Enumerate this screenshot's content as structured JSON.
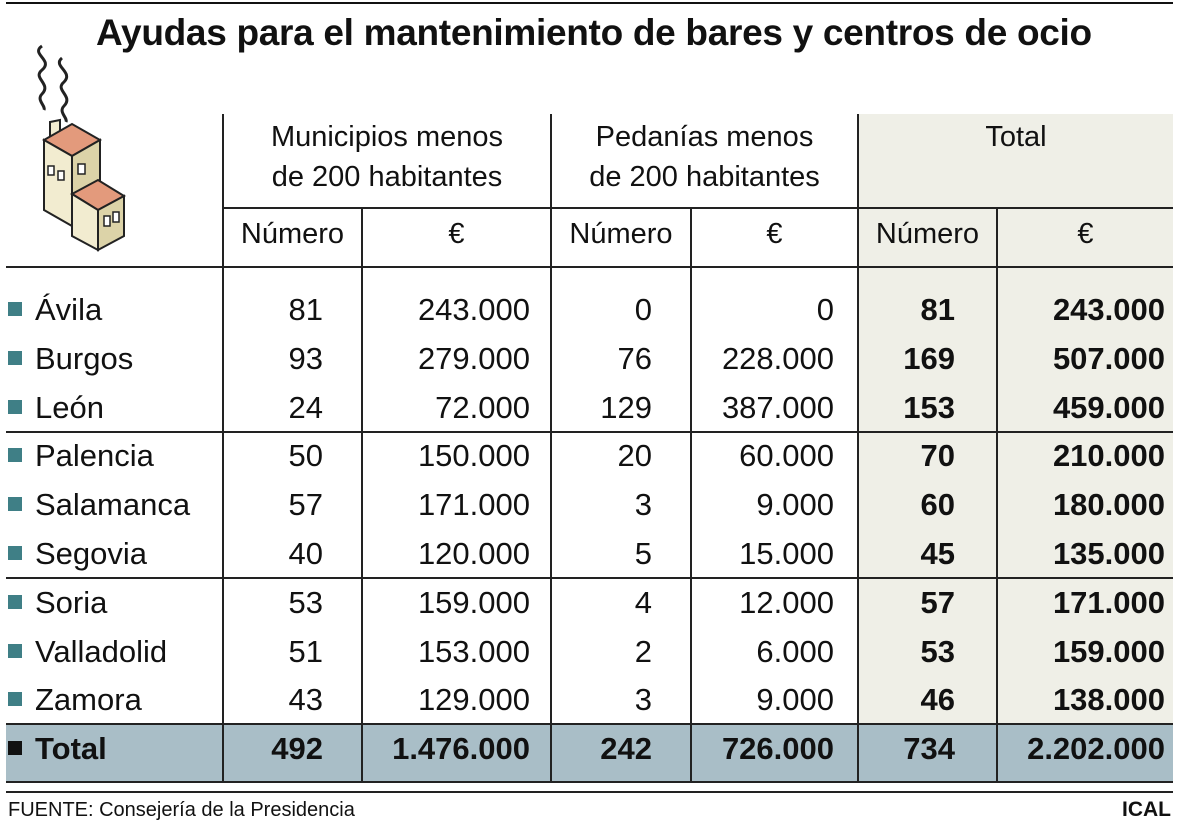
{
  "title": "Ayudas para el mantenimiento de bares y centros de ocio",
  "column_groups": [
    {
      "line1": "Municipios menos",
      "line2": "de 200 habitantes"
    },
    {
      "line1": "Pedanías menos",
      "line2": "de 200 habitantes"
    },
    {
      "line1": "Total",
      "line2": ""
    }
  ],
  "sub_headers": [
    "Número",
    "€",
    "Número",
    "€",
    "Número",
    "€"
  ],
  "colors": {
    "total_column_bg": "#efefe7",
    "total_row_bg": "#a9bec7",
    "row_marker": "#3f7f86"
  },
  "icon": "house-smoke-icon",
  "chart_data": {
    "type": "table",
    "title": "Ayudas para el mantenimiento de bares y centros de ocio",
    "columns": [
      "Municipios menos de 200 habitantes — Número",
      "Municipios menos de 200 habitantes — €",
      "Pedanías menos de 200 habitantes — Número",
      "Pedanías menos de 200 habitantes — €",
      "Total — Número",
      "Total — €"
    ],
    "rows": [
      {
        "name": "Ávila",
        "values": [
          "81",
          "243.000",
          "0",
          "0",
          "81",
          "243.000"
        ]
      },
      {
        "name": "Burgos",
        "values": [
          "93",
          "279.000",
          "76",
          "228.000",
          "169",
          "507.000"
        ]
      },
      {
        "name": "León",
        "values": [
          "24",
          "72.000",
          "129",
          "387.000",
          "153",
          "459.000"
        ]
      },
      {
        "name": "Palencia",
        "values": [
          "50",
          "150.000",
          "20",
          "60.000",
          "70",
          "210.000"
        ]
      },
      {
        "name": "Salamanca",
        "values": [
          "57",
          "171.000",
          "3",
          "9.000",
          "60",
          "180.000"
        ]
      },
      {
        "name": "Segovia",
        "values": [
          "40",
          "120.000",
          "5",
          "15.000",
          "45",
          "135.000"
        ]
      },
      {
        "name": "Soria",
        "values": [
          "53",
          "159.000",
          "4",
          "12.000",
          "57",
          "171.000"
        ]
      },
      {
        "name": "Valladolid",
        "values": [
          "51",
          "153.000",
          "2",
          "6.000",
          "53",
          "159.000"
        ]
      },
      {
        "name": "Zamora",
        "values": [
          "43",
          "129.000",
          "3",
          "9.000",
          "46",
          "138.000"
        ]
      }
    ],
    "total": {
      "name": "Total",
      "values": [
        "492",
        "1.476.000",
        "242",
        "726.000",
        "734",
        "2.202.000"
      ]
    }
  },
  "source": "FUENTE: Consejería de la Presidencia",
  "credit": "ICAL"
}
